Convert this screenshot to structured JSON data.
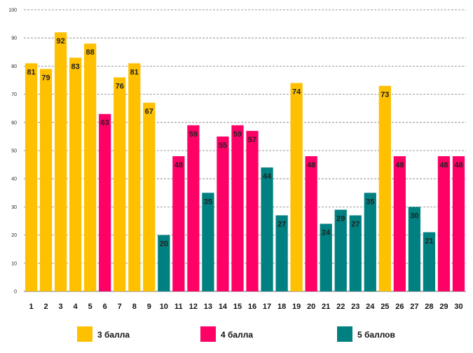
{
  "chart_data": {
    "type": "bar",
    "categories": [
      "1",
      "2",
      "3",
      "4",
      "5",
      "6",
      "7",
      "8",
      "9",
      "10",
      "11",
      "12",
      "13",
      "14",
      "15",
      "16",
      "17",
      "18",
      "19",
      "20",
      "21",
      "22",
      "23",
      "24",
      "25",
      "26",
      "27",
      "28",
      "29",
      "30"
    ],
    "values": [
      81,
      79,
      92,
      83,
      88,
      63,
      76,
      81,
      67,
      20,
      48,
      59,
      35,
      55,
      59,
      57,
      44,
      27,
      74,
      48,
      24,
      29,
      27,
      35,
      73,
      48,
      30,
      21,
      48,
      48
    ],
    "groups": [
      3,
      3,
      3,
      3,
      3,
      4,
      3,
      3,
      3,
      5,
      4,
      4,
      5,
      4,
      4,
      4,
      5,
      5,
      3,
      4,
      5,
      5,
      5,
      5,
      3,
      4,
      5,
      5,
      4,
      4
    ],
    "ylim": [
      0,
      100
    ],
    "yticks": [
      0,
      10,
      20,
      30,
      40,
      50,
      60,
      70,
      80,
      90,
      100
    ],
    "grid": true,
    "legend": [
      {
        "key": 3,
        "label": "3 балла",
        "color": "#FFC000"
      },
      {
        "key": 4,
        "label": "4 балла",
        "color": "#FF0066"
      },
      {
        "key": 5,
        "label": "5 баллов",
        "color": "#008080"
      }
    ]
  }
}
